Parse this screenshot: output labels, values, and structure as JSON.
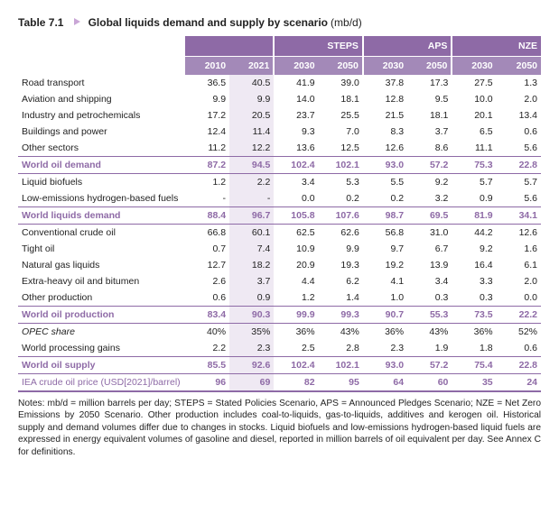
{
  "title": {
    "label": "Table 7.1",
    "main": "Global liquids demand and supply by scenario",
    "unit": "(mb/d)"
  },
  "header": {
    "groups": [
      "",
      "",
      "",
      "STEPS",
      "APS",
      "NZE"
    ],
    "years": [
      "",
      "2010",
      "2021",
      "2030",
      "2050",
      "2030",
      "2050",
      "2030",
      "2050"
    ]
  },
  "rows": [
    {
      "k": "",
      "l": "Road transport",
      "v": [
        "36.5",
        "40.5",
        "41.9",
        "39.0",
        "37.8",
        "17.3",
        "27.5",
        "1.3"
      ]
    },
    {
      "k": "",
      "l": "Aviation and shipping",
      "v": [
        "9.9",
        "9.9",
        "14.0",
        "18.1",
        "12.8",
        "9.5",
        "10.0",
        "2.0"
      ]
    },
    {
      "k": "",
      "l": "Industry and petrochemicals",
      "v": [
        "17.2",
        "20.5",
        "23.7",
        "25.5",
        "21.5",
        "18.1",
        "20.1",
        "13.4"
      ]
    },
    {
      "k": "",
      "l": "Buildings and power",
      "v": [
        "12.4",
        "11.4",
        "9.3",
        "7.0",
        "8.3",
        "3.7",
        "6.5",
        "0.6"
      ]
    },
    {
      "k": "",
      "l": "Other sectors",
      "v": [
        "11.2",
        "12.2",
        "13.6",
        "12.5",
        "12.6",
        "8.6",
        "11.1",
        "5.6"
      ]
    },
    {
      "k": "sum",
      "l": "World oil demand",
      "v": [
        "87.2",
        "94.5",
        "102.4",
        "102.1",
        "93.0",
        "57.2",
        "75.3",
        "22.8"
      ]
    },
    {
      "k": "",
      "l": "Liquid biofuels",
      "v": [
        "1.2",
        "2.2",
        "3.4",
        "5.3",
        "5.5",
        "9.2",
        "5.7",
        "5.7"
      ]
    },
    {
      "k": "",
      "l": "Low-emissions hydrogen-based fuels",
      "v": [
        "-",
        "-",
        "0.0",
        "0.2",
        "0.2",
        "3.2",
        "0.9",
        "5.6"
      ]
    },
    {
      "k": "sum",
      "l": "World liquids demand",
      "v": [
        "88.4",
        "96.7",
        "105.8",
        "107.6",
        "98.7",
        "69.5",
        "81.9",
        "34.1"
      ]
    },
    {
      "k": "",
      "l": "Conventional crude oil",
      "v": [
        "66.8",
        "60.1",
        "62.5",
        "62.6",
        "56.8",
        "31.0",
        "44.2",
        "12.6"
      ]
    },
    {
      "k": "",
      "l": "Tight oil",
      "v": [
        "0.7",
        "7.4",
        "10.9",
        "9.9",
        "9.7",
        "6.7",
        "9.2",
        "1.6"
      ]
    },
    {
      "k": "",
      "l": "Natural gas liquids",
      "v": [
        "12.7",
        "18.2",
        "20.9",
        "19.3",
        "19.2",
        "13.9",
        "16.4",
        "6.1"
      ]
    },
    {
      "k": "",
      "l": "Extra-heavy oil and bitumen",
      "v": [
        "2.6",
        "3.7",
        "4.4",
        "6.2",
        "4.1",
        "3.4",
        "3.3",
        "2.0"
      ]
    },
    {
      "k": "",
      "l": "Other production",
      "v": [
        "0.6",
        "0.9",
        "1.2",
        "1.4",
        "1.0",
        "0.3",
        "0.3",
        "0.0"
      ]
    },
    {
      "k": "sum",
      "l": "World oil production",
      "v": [
        "83.4",
        "90.3",
        "99.9",
        "99.3",
        "90.7",
        "55.3",
        "73.5",
        "22.2"
      ]
    },
    {
      "k": "italic",
      "l": "OPEC share",
      "v": [
        "40%",
        "35%",
        "36%",
        "43%",
        "36%",
        "43%",
        "36%",
        "52%"
      ]
    },
    {
      "k": "",
      "l": "World processing gains",
      "v": [
        "2.2",
        "2.3",
        "2.5",
        "2.8",
        "2.3",
        "1.9",
        "1.8",
        "0.6"
      ]
    },
    {
      "k": "sum-nb",
      "l": "World oil supply",
      "v": [
        "85.5",
        "92.6",
        "102.4",
        "102.1",
        "93.0",
        "57.2",
        "75.4",
        "22.8"
      ]
    },
    {
      "k": "price",
      "l": "IEA crude oil price (USD[2021]/barrel)",
      "v": [
        "96",
        "69",
        "82",
        "95",
        "64",
        "60",
        "35",
        "24"
      ]
    }
  ],
  "notes": "Notes: mb/d = million barrels per day; STEPS = Stated Policies Scenario, APS = Announced Pledges Scenario; NZE = Net Zero Emissions by 2050 Scenario. Other production includes coal-to-liquids, gas-to-liquids, additives and kerogen oil. Historical supply and demand volumes differ due to changes in stocks. Liquid biofuels and low-emissions hydrogen-based liquid fuels are expressed in energy equivalent volumes of gasoline and diesel, reported in million barrels of oil equivalent per day. See Annex C for definitions."
}
